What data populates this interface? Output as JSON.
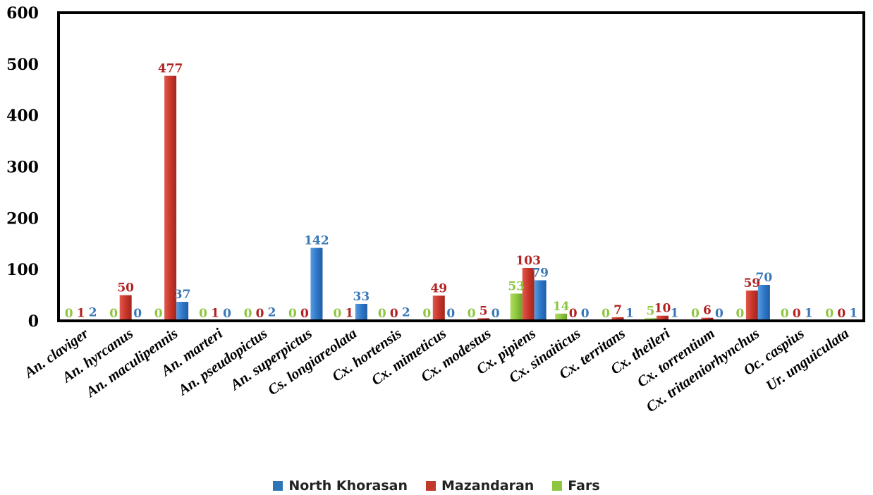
{
  "chart_data": {
    "type": "bar",
    "title": "",
    "xlabel": "",
    "ylabel": "",
    "ylim": [
      0,
      600
    ],
    "yticks": [
      0,
      100,
      200,
      300,
      400,
      500,
      600
    ],
    "grid": false,
    "legend_position": "bottom",
    "categories": [
      "An. claviger",
      "An. hyrcanus",
      "An. maculipennis",
      "An. marteri",
      "An. pseudopictus",
      "An. superpictus",
      "Cs. longiareolata",
      "Cx. hortensis",
      "Cx. mimeticus",
      "Cx. modestus",
      "Cx. pipiens",
      "Cx. sinaiticus",
      "Cx. territans",
      "Cx. theileri",
      "Cx. torrentium",
      "Cx. tritaeniorhynchus",
      "Oc. caspius",
      "Ur. unguiculata"
    ],
    "series": [
      {
        "name": "Fars",
        "color": "#8dc63f",
        "values": [
          0,
          0,
          0,
          0,
          0,
          0,
          0,
          0,
          0,
          0,
          53,
          14,
          0,
          5,
          0,
          0,
          0,
          0
        ]
      },
      {
        "name": "Mazandaran",
        "color": "#c0392b",
        "values": [
          1,
          50,
          477,
          1,
          0,
          0,
          1,
          0,
          49,
          5,
          103,
          0,
          7,
          10,
          6,
          59,
          0,
          0
        ]
      },
      {
        "name": "North Khorasan",
        "color": "#2e75b6",
        "values": [
          2,
          0,
          37,
          0,
          2,
          142,
          33,
          2,
          0,
          0,
          79,
          0,
          1,
          1,
          0,
          70,
          1,
          1
        ]
      }
    ],
    "legend": [
      "North Khorasan",
      "Mazandaran",
      "Fars"
    ]
  }
}
